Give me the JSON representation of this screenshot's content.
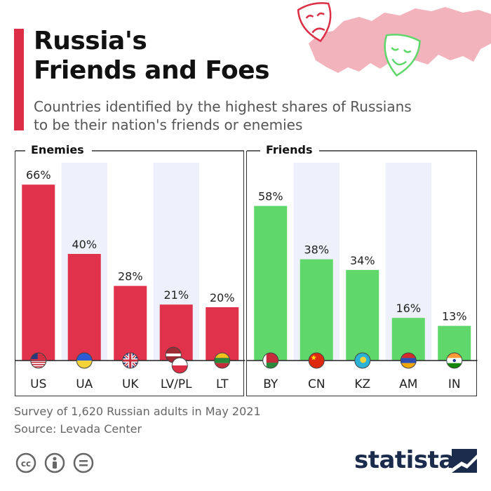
{
  "header": {
    "title_line1": "Russia's",
    "title_line2": "Friends and Foes",
    "subtitle_line1": "Countries identified by the highest shares of Russians",
    "subtitle_line2": "to be their nation's friends or enemies"
  },
  "footer": {
    "note": "Survey of 1,620 Russian adults in May 2021",
    "source": "Source: Levada Center",
    "brand": "statista"
  },
  "colors": {
    "enemies": "#e0334b",
    "friends": "#5fd76a",
    "accent": "#dc2f45",
    "stripe": "#eef1fb"
  },
  "chart_data": [
    {
      "type": "bar",
      "title": "Enemies",
      "categories": [
        "US",
        "UA",
        "UK",
        "LV/PL",
        "LT"
      ],
      "values": [
        66,
        40,
        28,
        21,
        20
      ],
      "value_labels": [
        "66%",
        "40%",
        "28%",
        "21%",
        "20%"
      ],
      "ylim": [
        0,
        70
      ],
      "grid": false
    },
    {
      "type": "bar",
      "title": "Friends",
      "categories": [
        "BY",
        "CN",
        "KZ",
        "AM",
        "IN"
      ],
      "values": [
        58,
        38,
        34,
        16,
        13
      ],
      "value_labels": [
        "58%",
        "38%",
        "34%",
        "16%",
        "13%"
      ],
      "ylim": [
        0,
        70
      ],
      "grid": false
    }
  ]
}
